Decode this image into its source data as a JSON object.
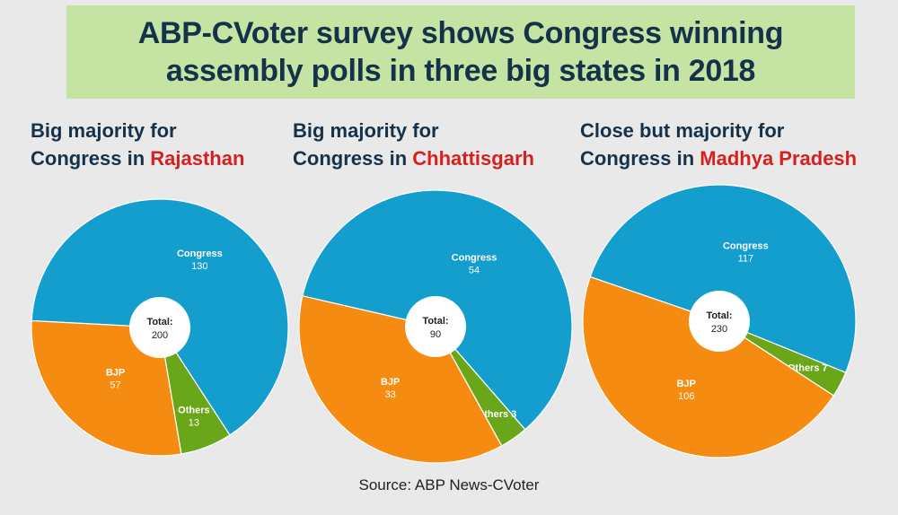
{
  "title": {
    "line1": "ABP-CVoter survey shows Congress winning",
    "line2": "assembly polls in three big states in 2018"
  },
  "colors": {
    "Congress": "#149ece",
    "BJP": "#f58b11",
    "Others": "#6aa61a",
    "heading": "#16324a",
    "highlight": "#d61f1f"
  },
  "chart_data": [
    {
      "type": "pie",
      "heading_line1": "Big majority for",
      "heading_line2": "Congress in",
      "state": "Rajasthan",
      "center_label": "Total:",
      "total": 200,
      "slices": [
        {
          "label": "Congress",
          "value": 130
        },
        {
          "label": "Others",
          "value": 13
        },
        {
          "label": "BJP",
          "value": 57
        }
      ]
    },
    {
      "type": "pie",
      "heading_line1": "Big majority for",
      "heading_line2": "Congress in",
      "state": "Chhattisgarh",
      "center_label": "Total:",
      "total": 90,
      "slices": [
        {
          "label": "Congress",
          "value": 54
        },
        {
          "label": "Others",
          "value": 3
        },
        {
          "label": "BJP",
          "value": 33
        }
      ]
    },
    {
      "type": "pie",
      "heading_line1": "Close but majority for",
      "heading_line2": "Congress in",
      "state": "Madhya Pradesh",
      "center_label": "Total:",
      "total": 230,
      "slices": [
        {
          "label": "Congress",
          "value": 117
        },
        {
          "label": "Others",
          "value": 7
        },
        {
          "label": "BJP",
          "value": 106
        }
      ]
    }
  ],
  "source": "Source: ABP News-CVoter"
}
